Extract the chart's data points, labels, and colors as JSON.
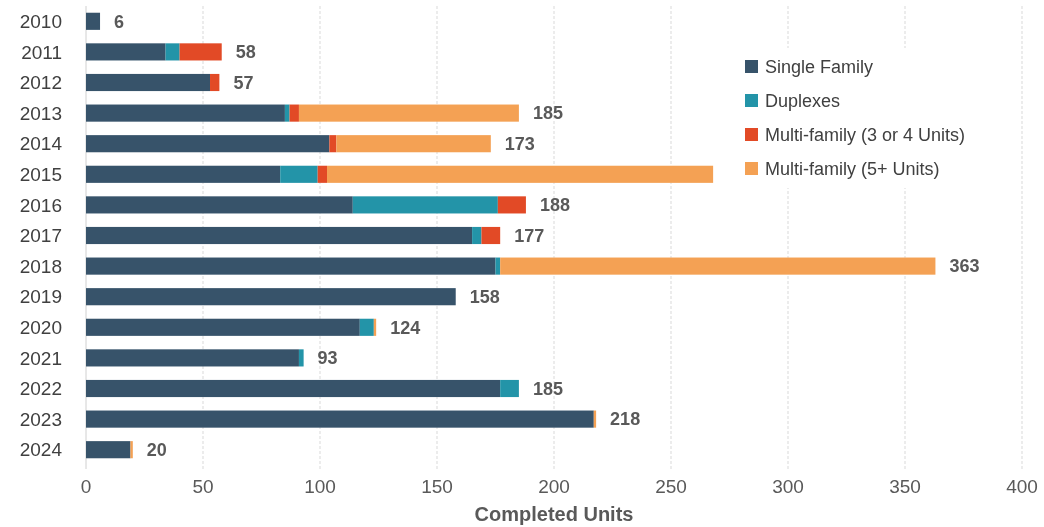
{
  "chart_data": {
    "type": "bar",
    "orientation": "horizontal",
    "stacked": true,
    "xlabel": "Completed Units",
    "categories": [
      "2010",
      "2011",
      "2012",
      "2013",
      "2014",
      "2015",
      "2016",
      "2017",
      "2018",
      "2019",
      "2020",
      "2021",
      "2022",
      "2023",
      "2024"
    ],
    "series": [
      {
        "name": "Single Family",
        "color": "#37536a",
        "values": [
          6,
          34,
          53,
          85,
          104,
          83,
          114,
          165,
          175,
          158,
          117,
          91,
          177,
          217,
          19
        ]
      },
      {
        "name": "Duplexes",
        "color": "#2394a8",
        "values": [
          0,
          6,
          0,
          2,
          0,
          16,
          62,
          4,
          2,
          0,
          6,
          2,
          8,
          0,
          0
        ]
      },
      {
        "name": "Multi-family (3 or 4 Units)",
        "color": "#e24a26",
        "values": [
          0,
          18,
          4,
          4,
          3,
          4,
          12,
          8,
          0,
          0,
          0,
          0,
          0,
          0,
          0
        ]
      },
      {
        "name": "Multi-family (5+ Units)",
        "color": "#f4a154",
        "values": [
          0,
          0,
          0,
          94,
          66,
          165,
          0,
          0,
          186,
          0,
          1,
          0,
          0,
          1,
          1
        ]
      }
    ],
    "totals": [
      "6",
      "58",
      "57",
      "185",
      "173",
      null,
      "188",
      "177",
      "363",
      "158",
      "124",
      "93",
      "185",
      "218",
      "20"
    ],
    "xlim": [
      0,
      400
    ],
    "xticks": [
      0,
      50,
      100,
      150,
      200,
      250,
      300,
      350,
      400
    ],
    "grid": "x",
    "legend": "top right"
  }
}
